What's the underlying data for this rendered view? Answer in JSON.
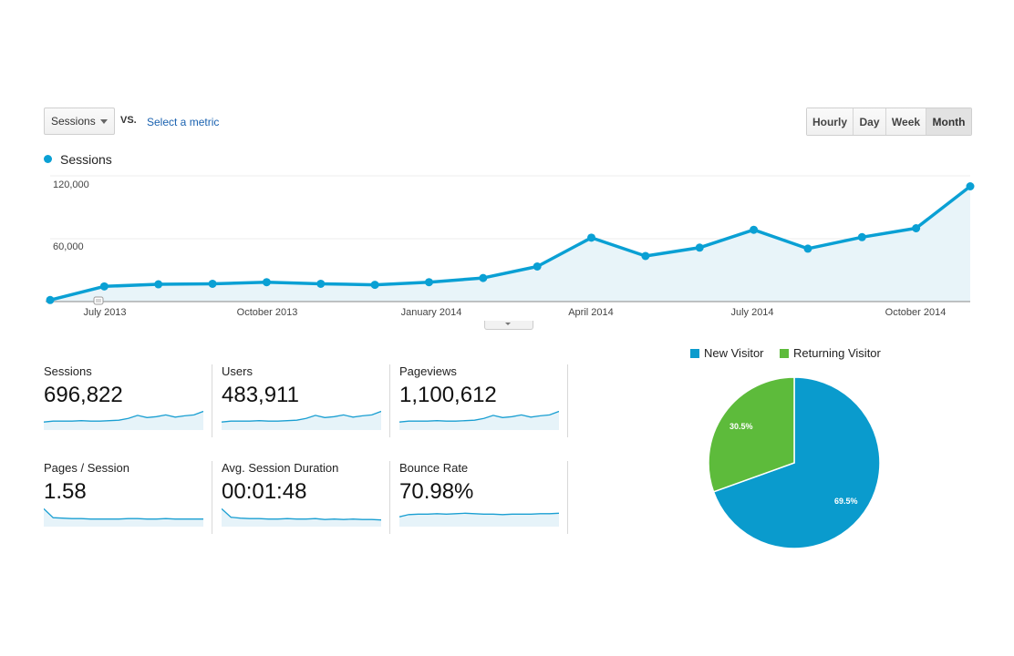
{
  "controls": {
    "metric_select": "Sessions",
    "vs_label": "VS.",
    "select_metric_link": "Select a metric",
    "time_buttons": [
      "Hourly",
      "Day",
      "Week",
      "Month"
    ],
    "active_time_button": "Month"
  },
  "colors": {
    "sessions_line": "#0aa0d4",
    "new_visitor": "#0a9bcd",
    "returning_visitor": "#5dbb3b"
  },
  "main_chart": {
    "legend_label": "Sessions",
    "chart_data": {
      "type": "area",
      "series": [
        {
          "name": "Sessions",
          "values": [
            1500,
            14500,
            16500,
            17000,
            18500,
            17000,
            16000,
            18500,
            22500,
            33500,
            61000,
            43500,
            51500,
            68500,
            50500,
            61500,
            70000,
            110000
          ]
        }
      ],
      "y_ticks": [
        "120,000",
        "60,000"
      ],
      "ylim": [
        0,
        120000
      ],
      "x_tick_labels": [
        "July 2013",
        "October 2013",
        "January 2014",
        "April 2014",
        "July 2014",
        "October 2014"
      ],
      "grid": true
    }
  },
  "tiles": [
    {
      "label": "Sessions",
      "value": "696,822",
      "spark": [
        18,
        20,
        20,
        20,
        21,
        20,
        20,
        21,
        22,
        26,
        33,
        28,
        30,
        34,
        29,
        32,
        34,
        42
      ]
    },
    {
      "label": "Users",
      "value": "483,911",
      "spark": [
        18,
        20,
        20,
        20,
        21,
        20,
        20,
        21,
        22,
        26,
        33,
        28,
        30,
        34,
        29,
        32,
        34,
        42
      ]
    },
    {
      "label": "Pageviews",
      "value": "1,100,612",
      "spark": [
        18,
        20,
        20,
        20,
        21,
        20,
        20,
        21,
        22,
        26,
        33,
        28,
        30,
        34,
        29,
        32,
        34,
        42
      ]
    },
    {
      "label": "Pages / Session",
      "value": "1.58",
      "spark": [
        40,
        20,
        19,
        18,
        18,
        17,
        17,
        17,
        17,
        18,
        18,
        17,
        17,
        18,
        17,
        17,
        17,
        17
      ]
    },
    {
      "label": "Avg. Session Duration",
      "value": "00:01:48",
      "spark": [
        40,
        21,
        19,
        18,
        18,
        17,
        17,
        18,
        17,
        17,
        18,
        16,
        17,
        16,
        17,
        16,
        16,
        15
      ]
    },
    {
      "label": "Bounce Rate",
      "value": "70.98%",
      "spark": [
        22,
        27,
        28,
        28,
        29,
        28,
        29,
        30,
        29,
        28,
        28,
        27,
        28,
        28,
        28,
        29,
        29,
        30
      ]
    }
  ],
  "pie": {
    "chart_data": {
      "type": "pie",
      "labels": [
        "New Visitor",
        "Returning Visitor"
      ],
      "values": [
        69.5,
        30.5
      ],
      "data_labels": [
        "69.5%",
        "30.5%"
      ]
    }
  }
}
